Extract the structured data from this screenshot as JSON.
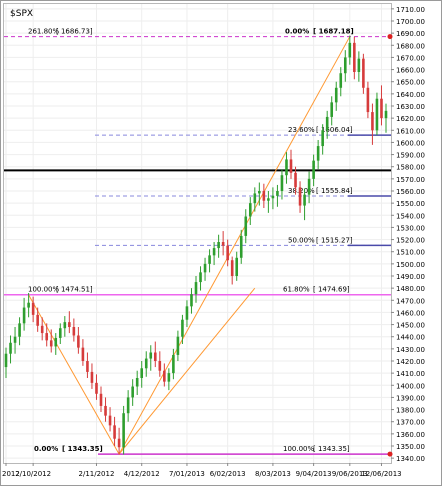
{
  "chart_data": {
    "type": "candlestick",
    "symbol": "$SPX",
    "y_axis": {
      "ticks": [
        1340,
        1350,
        1360,
        1370,
        1380,
        1390,
        1400,
        1410,
        1420,
        1430,
        1440,
        1450,
        1460,
        1470,
        1480,
        1490,
        1500,
        1510,
        1520,
        1530,
        1540,
        1550,
        1560,
        1570,
        1580,
        1590,
        1600,
        1610,
        1620,
        1630,
        1640,
        1650,
        1660,
        1670,
        1680,
        1690,
        1700,
        1710
      ],
      "ylim": [
        1336,
        1714
      ]
    },
    "x_axis": {
      "tick_labels": [
        "2012",
        "2/10/2012",
        "2/11/2012",
        "4/12/2012",
        "7/01/2013",
        "6/02/2013",
        "8/03/2013",
        "9/04/2013",
        "9/06/2013",
        "12/06/2013"
      ]
    },
    "fib_levels": [
      {
        "left_pct": "261.80%",
        "left_price": "[ 1686.73]",
        "right_pct": "0.00%",
        "right_price": "[ 1687.18]",
        "value": 1687.18,
        "color": "#cc33cc",
        "style": "dash"
      },
      {
        "pct": "23.60%",
        "price": "[ 1606.04]",
        "value": 1606.04,
        "color": "#8888dd",
        "style": "dash"
      },
      {
        "pct": "38.20%",
        "price": "[ 1555.84]",
        "value": 1555.84,
        "color": "#8888dd",
        "style": "dash"
      },
      {
        "pct": "50.00%",
        "price": "[ 1515.27]",
        "value": 1515.27,
        "color": "#8888dd",
        "style": "dash"
      },
      {
        "left_pct": "100.00%",
        "left_price": "[ 1474.51]",
        "right_pct": "61.80%",
        "right_price": "[ 1474.69]",
        "value": 1474.6,
        "color": "#ee66ee",
        "style": "solid"
      },
      {
        "left_pct": "0.00%",
        "left_price": "[ 1343.35]",
        "right_pct": "100.00%",
        "right_price": "[ 1343.35]",
        "value": 1343.35,
        "color": "#cc33cc",
        "style": "solid"
      }
    ],
    "horizontal_line": {
      "value": 1577,
      "color": "#000000"
    },
    "series": [
      {
        "t": 0,
        "o": 1415,
        "h": 1431,
        "l": 1406,
        "c": 1426
      },
      {
        "t": 1,
        "o": 1426,
        "h": 1441,
        "l": 1418,
        "c": 1435
      },
      {
        "t": 2,
        "o": 1435,
        "h": 1448,
        "l": 1426,
        "c": 1440
      },
      {
        "t": 3,
        "o": 1440,
        "h": 1456,
        "l": 1433,
        "c": 1451
      },
      {
        "t": 4,
        "o": 1451,
        "h": 1472,
        "l": 1445,
        "c": 1464
      },
      {
        "t": 5,
        "o": 1464,
        "h": 1476,
        "l": 1456,
        "c": 1468
      },
      {
        "t": 6,
        "o": 1468,
        "h": 1473,
        "l": 1452,
        "c": 1458
      },
      {
        "t": 7,
        "o": 1458,
        "h": 1464,
        "l": 1444,
        "c": 1449
      },
      {
        "t": 8,
        "o": 1449,
        "h": 1456,
        "l": 1437,
        "c": 1443
      },
      {
        "t": 9,
        "o": 1443,
        "h": 1451,
        "l": 1432,
        "c": 1437
      },
      {
        "t": 10,
        "o": 1437,
        "h": 1446,
        "l": 1427,
        "c": 1432
      },
      {
        "t": 11,
        "o": 1432,
        "h": 1443,
        "l": 1425,
        "c": 1439
      },
      {
        "t": 12,
        "o": 1439,
        "h": 1451,
        "l": 1434,
        "c": 1447
      },
      {
        "t": 13,
        "o": 1447,
        "h": 1457,
        "l": 1440,
        "c": 1452
      },
      {
        "t": 14,
        "o": 1452,
        "h": 1461,
        "l": 1443,
        "c": 1448
      },
      {
        "t": 15,
        "o": 1448,
        "h": 1455,
        "l": 1436,
        "c": 1441
      },
      {
        "t": 16,
        "o": 1441,
        "h": 1448,
        "l": 1426,
        "c": 1431
      },
      {
        "t": 17,
        "o": 1431,
        "h": 1438,
        "l": 1416,
        "c": 1420
      },
      {
        "t": 18,
        "o": 1420,
        "h": 1427,
        "l": 1406,
        "c": 1411
      },
      {
        "t": 19,
        "o": 1411,
        "h": 1418,
        "l": 1397,
        "c": 1402
      },
      {
        "t": 20,
        "o": 1402,
        "h": 1409,
        "l": 1388,
        "c": 1393
      },
      {
        "t": 21,
        "o": 1393,
        "h": 1399,
        "l": 1378,
        "c": 1383
      },
      {
        "t": 22,
        "o": 1383,
        "h": 1390,
        "l": 1370,
        "c": 1375
      },
      {
        "t": 23,
        "o": 1375,
        "h": 1382,
        "l": 1362,
        "c": 1367
      },
      {
        "t": 24,
        "o": 1367,
        "h": 1374,
        "l": 1350,
        "c": 1356
      },
      {
        "t": 25,
        "o": 1356,
        "h": 1365,
        "l": 1343,
        "c": 1349
      },
      {
        "t": 26,
        "o": 1349,
        "h": 1383,
        "l": 1343,
        "c": 1377
      },
      {
        "t": 27,
        "o": 1377,
        "h": 1396,
        "l": 1370,
        "c": 1390
      },
      {
        "t": 28,
        "o": 1390,
        "h": 1405,
        "l": 1383,
        "c": 1399
      },
      {
        "t": 29,
        "o": 1399,
        "h": 1412,
        "l": 1392,
        "c": 1406
      },
      {
        "t": 30,
        "o": 1406,
        "h": 1420,
        "l": 1398,
        "c": 1414
      },
      {
        "t": 31,
        "o": 1414,
        "h": 1428,
        "l": 1407,
        "c": 1422
      },
      {
        "t": 32,
        "o": 1422,
        "h": 1433,
        "l": 1412,
        "c": 1427
      },
      {
        "t": 33,
        "o": 1427,
        "h": 1436,
        "l": 1415,
        "c": 1420
      },
      {
        "t": 34,
        "o": 1420,
        "h": 1428,
        "l": 1407,
        "c": 1412
      },
      {
        "t": 35,
        "o": 1412,
        "h": 1418,
        "l": 1399,
        "c": 1403
      },
      {
        "t": 36,
        "o": 1403,
        "h": 1414,
        "l": 1396,
        "c": 1410
      },
      {
        "t": 37,
        "o": 1410,
        "h": 1430,
        "l": 1405,
        "c": 1425
      },
      {
        "t": 38,
        "o": 1425,
        "h": 1445,
        "l": 1420,
        "c": 1440
      },
      {
        "t": 39,
        "o": 1440,
        "h": 1458,
        "l": 1434,
        "c": 1454
      },
      {
        "t": 40,
        "o": 1454,
        "h": 1470,
        "l": 1448,
        "c": 1465
      },
      {
        "t": 41,
        "o": 1465,
        "h": 1480,
        "l": 1459,
        "c": 1475
      },
      {
        "t": 42,
        "o": 1475,
        "h": 1490,
        "l": 1468,
        "c": 1485
      },
      {
        "t": 43,
        "o": 1485,
        "h": 1498,
        "l": 1478,
        "c": 1493
      },
      {
        "t": 44,
        "o": 1493,
        "h": 1505,
        "l": 1486,
        "c": 1500
      },
      {
        "t": 45,
        "o": 1500,
        "h": 1512,
        "l": 1493,
        "c": 1507
      },
      {
        "t": 46,
        "o": 1507,
        "h": 1518,
        "l": 1499,
        "c": 1513
      },
      {
        "t": 47,
        "o": 1513,
        "h": 1524,
        "l": 1505,
        "c": 1518
      },
      {
        "t": 48,
        "o": 1518,
        "h": 1527,
        "l": 1507,
        "c": 1515
      },
      {
        "t": 49,
        "o": 1515,
        "h": 1520,
        "l": 1498,
        "c": 1503
      },
      {
        "t": 50,
        "o": 1503,
        "h": 1506,
        "l": 1483,
        "c": 1490
      },
      {
        "t": 51,
        "o": 1490,
        "h": 1510,
        "l": 1486,
        "c": 1505
      },
      {
        "t": 52,
        "o": 1505,
        "h": 1528,
        "l": 1500,
        "c": 1523
      },
      {
        "t": 53,
        "o": 1523,
        "h": 1545,
        "l": 1517,
        "c": 1539
      },
      {
        "t": 54,
        "o": 1539,
        "h": 1555,
        "l": 1532,
        "c": 1550
      },
      {
        "t": 55,
        "o": 1550,
        "h": 1563,
        "l": 1543,
        "c": 1558
      },
      {
        "t": 56,
        "o": 1558,
        "h": 1567,
        "l": 1548,
        "c": 1560
      },
      {
        "t": 57,
        "o": 1560,
        "h": 1566,
        "l": 1546,
        "c": 1552
      },
      {
        "t": 58,
        "o": 1552,
        "h": 1560,
        "l": 1542,
        "c": 1554
      },
      {
        "t": 59,
        "o": 1554,
        "h": 1563,
        "l": 1545,
        "c": 1556
      },
      {
        "t": 60,
        "o": 1556,
        "h": 1565,
        "l": 1547,
        "c": 1560
      },
      {
        "t": 61,
        "o": 1560,
        "h": 1578,
        "l": 1553,
        "c": 1573
      },
      {
        "t": 62,
        "o": 1573,
        "h": 1592,
        "l": 1566,
        "c": 1586
      },
      {
        "t": 63,
        "o": 1586,
        "h": 1594,
        "l": 1570,
        "c": 1575
      },
      {
        "t": 64,
        "o": 1575,
        "h": 1580,
        "l": 1557,
        "c": 1563
      },
      {
        "t": 65,
        "o": 1563,
        "h": 1568,
        "l": 1542,
        "c": 1548
      },
      {
        "t": 66,
        "o": 1548,
        "h": 1562,
        "l": 1536,
        "c": 1557
      },
      {
        "t": 67,
        "o": 1557,
        "h": 1576,
        "l": 1550,
        "c": 1570
      },
      {
        "t": 68,
        "o": 1570,
        "h": 1590,
        "l": 1564,
        "c": 1585
      },
      {
        "t": 69,
        "o": 1585,
        "h": 1602,
        "l": 1578,
        "c": 1597
      },
      {
        "t": 70,
        "o": 1597,
        "h": 1615,
        "l": 1590,
        "c": 1610
      },
      {
        "t": 71,
        "o": 1610,
        "h": 1626,
        "l": 1603,
        "c": 1621
      },
      {
        "t": 72,
        "o": 1621,
        "h": 1638,
        "l": 1614,
        "c": 1633
      },
      {
        "t": 73,
        "o": 1633,
        "h": 1650,
        "l": 1626,
        "c": 1645
      },
      {
        "t": 74,
        "o": 1645,
        "h": 1662,
        "l": 1638,
        "c": 1657
      },
      {
        "t": 75,
        "o": 1657,
        "h": 1676,
        "l": 1650,
        "c": 1670
      },
      {
        "t": 76,
        "o": 1670,
        "h": 1688,
        "l": 1664,
        "c": 1682
      },
      {
        "t": 77,
        "o": 1682,
        "h": 1687,
        "l": 1652,
        "c": 1658
      },
      {
        "t": 78,
        "o": 1658,
        "h": 1675,
        "l": 1650,
        "c": 1669
      },
      {
        "t": 79,
        "o": 1669,
        "h": 1673,
        "l": 1640,
        "c": 1645
      },
      {
        "t": 80,
        "o": 1645,
        "h": 1650,
        "l": 1620,
        "c": 1625
      },
      {
        "t": 81,
        "o": 1625,
        "h": 1632,
        "l": 1598,
        "c": 1610
      },
      {
        "t": 82,
        "o": 1610,
        "h": 1641,
        "l": 1606,
        "c": 1636
      },
      {
        "t": 83,
        "o": 1636,
        "h": 1647,
        "l": 1614,
        "c": 1620
      },
      {
        "t": 84,
        "o": 1620,
        "h": 1632,
        "l": 1608,
        "c": 1626
      }
    ]
  }
}
